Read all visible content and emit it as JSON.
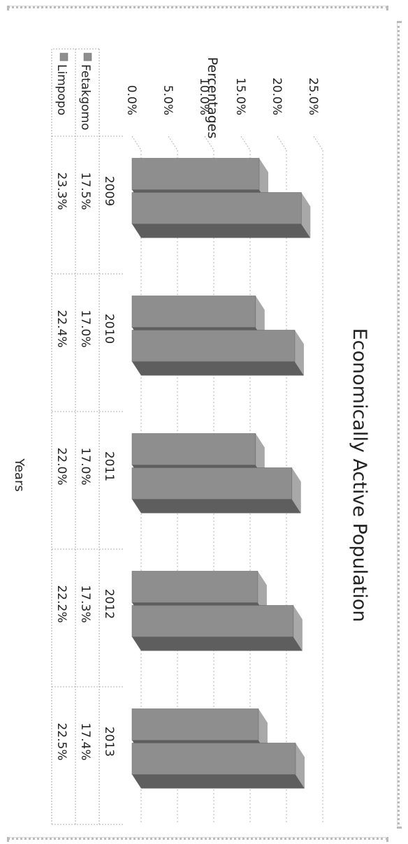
{
  "chart_data": {
    "type": "bar",
    "title": "Economically Active Population",
    "xlabel": "Years",
    "ylabel": "Percentages",
    "categories": [
      "2009",
      "2010",
      "2011",
      "2012",
      "2013"
    ],
    "series": [
      {
        "name": "Fetakgomo",
        "values": [
          17.5,
          17.0,
          17.0,
          17.3,
          17.4
        ],
        "labels": [
          "17.5%",
          "17.0%",
          "17.0%",
          "17.3%",
          "17.4%"
        ]
      },
      {
        "name": "Limpopo",
        "values": [
          23.3,
          22.4,
          22.0,
          22.2,
          22.5
        ],
        "labels": [
          "23.3%",
          "22.4%",
          "22.0%",
          "22.2%",
          "22.5%"
        ]
      }
    ],
    "ylim": [
      0,
      25
    ],
    "yticks": [
      "0.0%",
      "5.0%",
      "10.0%",
      "15.0%",
      "20.0%",
      "25.0%"
    ],
    "grid": true,
    "legend": "data-table",
    "colors": {
      "bar_front": "#8e8e8e",
      "bar_top": "#a8a8a8",
      "bar_side": "#5e5e5e",
      "grid": "#b5b5b5"
    }
  }
}
